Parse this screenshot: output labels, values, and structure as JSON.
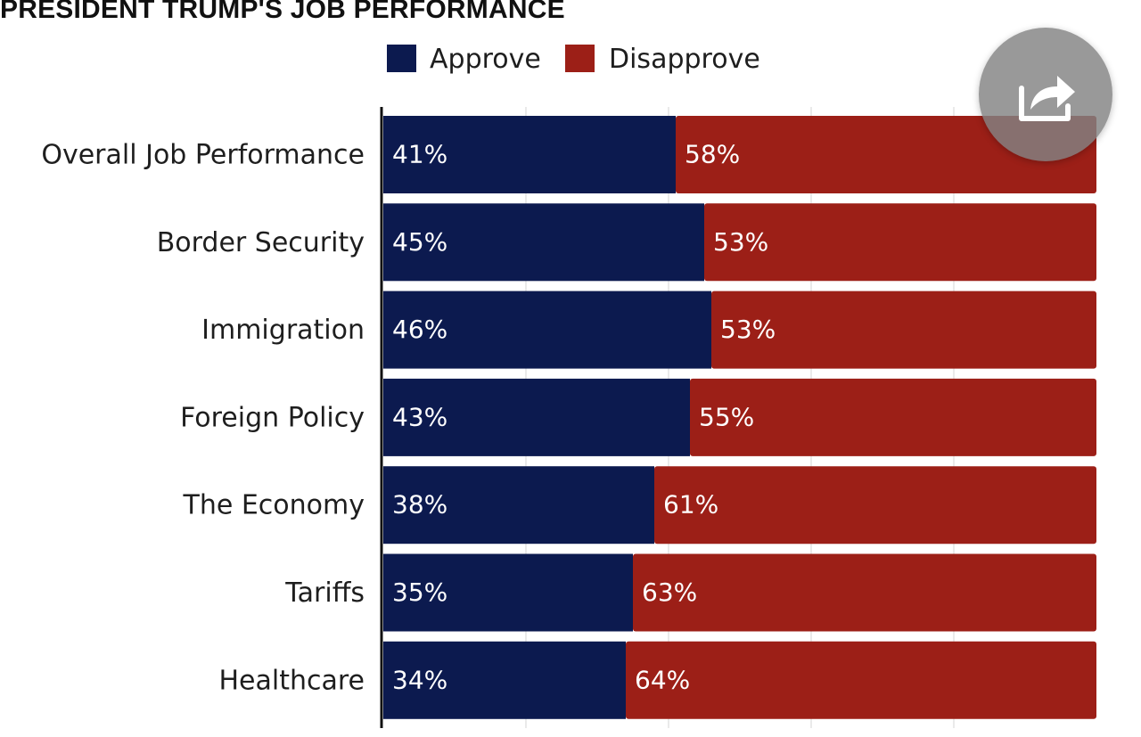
{
  "header": {
    "title": "PRESIDENT TRUMP'S JOB PERFORMANCE"
  },
  "share": {
    "icon": "share-icon"
  },
  "colors": {
    "approve": "#0c1a4f",
    "disapprove": "#9c1f17",
    "grid": "#e3e3e3",
    "axis": "#111111"
  },
  "chart_data": {
    "type": "bar",
    "orientation": "horizontal",
    "stacked": true,
    "title": "PRESIDENT TRUMP'S JOB PERFORMANCE",
    "legend_position": "top",
    "categories": [
      "Overall Job Performance",
      "Border Security",
      "Immigration",
      "Foreign Policy",
      "The Economy",
      "Tariffs",
      "Healthcare"
    ],
    "series": [
      {
        "name": "Approve",
        "values": [
          41,
          45,
          46,
          43,
          38,
          35,
          34
        ],
        "labels": [
          "41%",
          "45%",
          "46%",
          "43%",
          "38%",
          "35%",
          "34%"
        ]
      },
      {
        "name": "Disapprove",
        "values": [
          58,
          53,
          53,
          55,
          61,
          63,
          64
        ],
        "labels": [
          "58%",
          "53%",
          "53%",
          "55%",
          "61%",
          "63%",
          "64%"
        ]
      }
    ],
    "xlim": [
      0,
      100
    ],
    "grid": true
  }
}
